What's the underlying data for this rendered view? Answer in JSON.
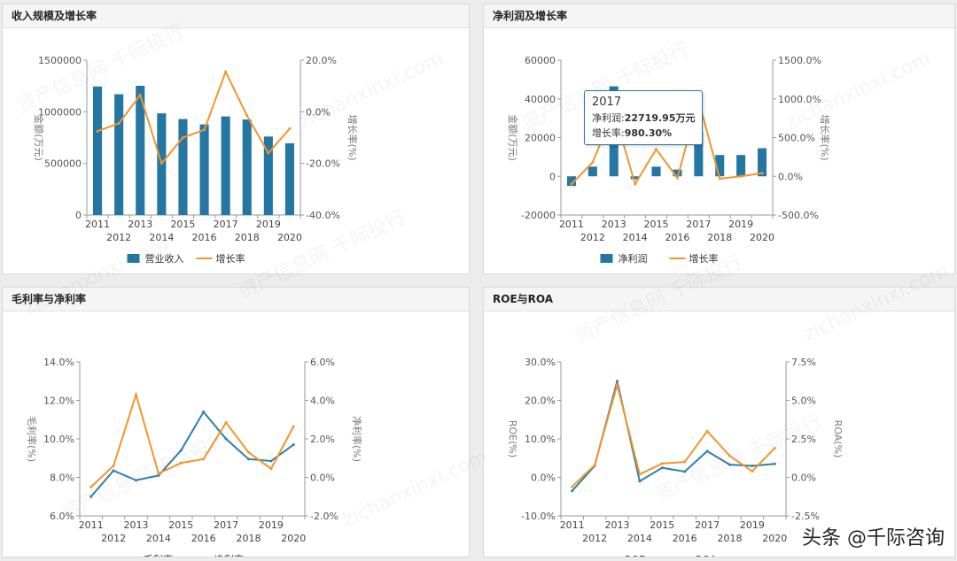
{
  "watermark": {
    "text1": "资产信息网 千际投行",
    "text2": "zichanxinxi.com"
  },
  "brand": "头条 @千际咨询",
  "colors": {
    "bar": "#2476a3",
    "line_orange": "#f0962c",
    "line_blue": "#2e80a8",
    "axis": "#999999"
  },
  "chart_data": [
    {
      "id": "revenue",
      "title": "收入规模及增长率",
      "type": "bar",
      "categories": [
        "2011",
        "2012",
        "2013",
        "2014",
        "2015",
        "2016",
        "2017",
        "2018",
        "2019",
        "2020"
      ],
      "y_left": {
        "label": "金额(万元)",
        "min": 0,
        "max": 1500000,
        "ticks": [
          "0",
          "500000",
          "1000000",
          "1500000"
        ]
      },
      "y_right": {
        "label": "增长率(%)",
        "min": -40,
        "max": 20,
        "ticks": [
          "-40.0%",
          "-20.0%",
          "0.0%",
          "20.0%"
        ]
      },
      "series": [
        {
          "name": "营业收入",
          "kind": "bar",
          "axis": "left",
          "values": [
            1245000,
            1170000,
            1252000,
            985000,
            930000,
            878000,
            955000,
            925000,
            760000,
            695000
          ]
        },
        {
          "name": "增长率",
          "kind": "line",
          "axis": "right",
          "values": [
            -7.5,
            -4.5,
            6.5,
            -20.0,
            -10.0,
            -7.0,
            15.5,
            -1.5,
            -16.0,
            -6.5
          ]
        }
      ],
      "legend": [
        "营业收入",
        "增长率"
      ]
    },
    {
      "id": "profit",
      "title": "净利润及增长率",
      "type": "bar",
      "categories": [
        "2011",
        "2012",
        "2013",
        "2014",
        "2015",
        "2016",
        "2017",
        "2018",
        "2019",
        "2020"
      ],
      "y_left": {
        "label": "金额(万元)",
        "min": -20000,
        "max": 60000,
        "ticks": [
          "-20000",
          "0",
          "20000",
          "40000",
          "60000"
        ]
      },
      "y_right": {
        "label": "增长率(%)",
        "min": -500,
        "max": 1500,
        "ticks": [
          "-500.0%",
          "0.0%",
          "500.0%",
          "1000.0%",
          "1500.0%"
        ]
      },
      "series": [
        {
          "name": "净利润",
          "kind": "bar",
          "axis": "left",
          "values": [
            -5000,
            5000,
            46500,
            -1500,
            5000,
            3500,
            22719.95,
            11000,
            11000,
            14500
          ]
        },
        {
          "name": "增长率",
          "kind": "line",
          "axis": "right",
          "values": [
            -100,
            180,
            850,
            -100,
            350,
            -20,
            980.3,
            -30,
            0,
            40
          ]
        }
      ],
      "legend": [
        "净利润",
        "增长率"
      ],
      "tooltip": {
        "year": "2017",
        "line1_label": "净利润:",
        "line1_value": "22719.95万元",
        "line2_label": "增长率:",
        "line2_value": "980.30%",
        "index": 6
      }
    },
    {
      "id": "margin",
      "title": "毛利率与净利率",
      "type": "line",
      "categories": [
        "2011",
        "2012",
        "2013",
        "2014",
        "2015",
        "2016",
        "2017",
        "2018",
        "2019",
        "2020"
      ],
      "y_left": {
        "label": "毛利率(%)",
        "min": 6,
        "max": 14,
        "ticks": [
          "6.0%",
          "8.0%",
          "10.0%",
          "12.0%",
          "14.0%"
        ]
      },
      "y_right": {
        "label": "净利率(%)",
        "min": -2,
        "max": 6,
        "ticks": [
          "-2.0%",
          "0.0%",
          "2.0%",
          "4.0%",
          "6.0%"
        ]
      },
      "series": [
        {
          "name": "毛利率",
          "kind": "line",
          "axis": "left",
          "color": "blue",
          "values": [
            7.0,
            8.35,
            7.85,
            8.1,
            9.4,
            11.4,
            10.0,
            8.95,
            8.85,
            9.7
          ]
        },
        {
          "name": "净利率",
          "kind": "line",
          "axis": "right",
          "color": "orange",
          "values": [
            -0.5,
            0.6,
            4.3,
            0.2,
            0.75,
            0.95,
            2.85,
            1.3,
            0.45,
            2.65
          ]
        }
      ],
      "legend": [
        "毛利率",
        "净利率"
      ]
    },
    {
      "id": "roe",
      "title": "ROE与ROA",
      "type": "line",
      "categories": [
        "2011",
        "2012",
        "2013",
        "2014",
        "2015",
        "2016",
        "2017",
        "2018",
        "2019",
        "2020"
      ],
      "y_left": {
        "label": "ROE(%)",
        "min": -10,
        "max": 30,
        "ticks": [
          "-10.0%",
          "0.0%",
          "10.0%",
          "20.0%",
          "30.0%"
        ]
      },
      "y_right": {
        "label": "ROA(%)",
        "min": -2.5,
        "max": 7.5,
        "ticks": [
          "-2.5%",
          "0.0%",
          "2.5%",
          "5.0%",
          "7.5%"
        ]
      },
      "series": [
        {
          "name": "ROE",
          "kind": "line",
          "axis": "left",
          "color": "blue",
          "values": [
            -3.5,
            3.0,
            25.0,
            -1.0,
            2.5,
            1.5,
            6.8,
            3.3,
            3.0,
            3.5
          ]
        },
        {
          "name": "ROA",
          "kind": "line",
          "axis": "right",
          "color": "orange",
          "values": [
            -0.6,
            0.8,
            6.0,
            0.2,
            0.9,
            1.0,
            3.0,
            1.4,
            0.4,
            1.9
          ]
        }
      ],
      "legend": [
        "ROE",
        "ROA"
      ]
    }
  ]
}
